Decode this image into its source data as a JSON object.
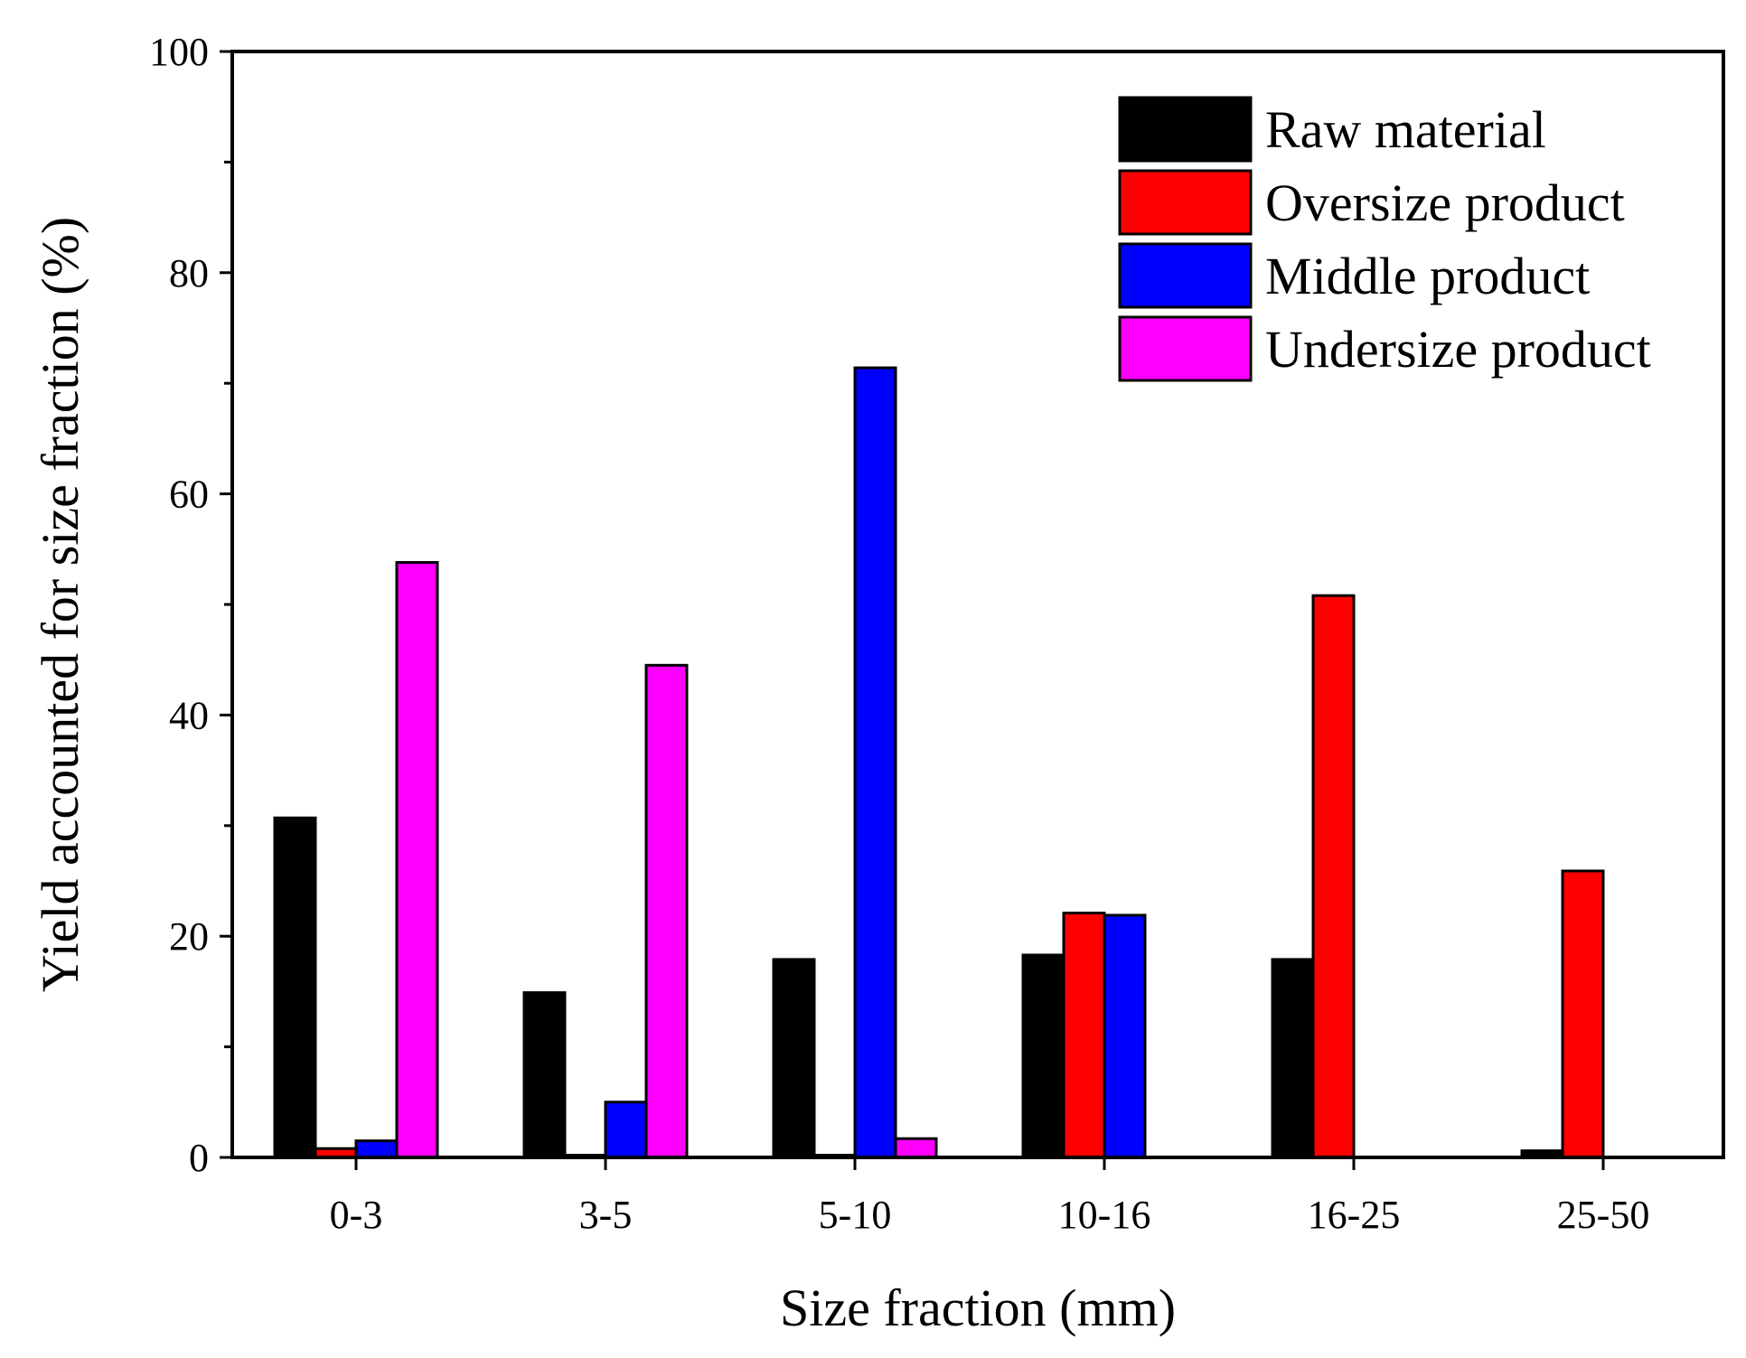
{
  "chart_data": {
    "type": "bar",
    "title": "",
    "xlabel": "Size fraction (mm)",
    "ylabel": "Yield accounted for size fraction (%)",
    "ylim": [
      0,
      100
    ],
    "yticks": [
      "0",
      "20",
      "40",
      "60",
      "80",
      "100"
    ],
    "categories": [
      "0-3",
      "3-5",
      "5-10",
      "10-16",
      "16-25",
      "25-50"
    ],
    "legend_position": "top-right",
    "series": [
      {
        "name": "Raw material",
        "color": "#000000",
        "values": [
          30.7,
          14.9,
          17.9,
          18.3,
          17.9,
          0.6
        ]
      },
      {
        "name": "Oversize product",
        "color": "#ff0000",
        "values": [
          0.8,
          0.2,
          0.2,
          22.1,
          50.8,
          25.9
        ]
      },
      {
        "name": "Middle product",
        "color": "#0000ff",
        "values": [
          1.5,
          5.0,
          71.4,
          21.9,
          0,
          0
        ]
      },
      {
        "name": "Undersize product",
        "color": "#ff00ff",
        "values": [
          53.8,
          44.5,
          1.7,
          0,
          0,
          0
        ]
      }
    ]
  }
}
